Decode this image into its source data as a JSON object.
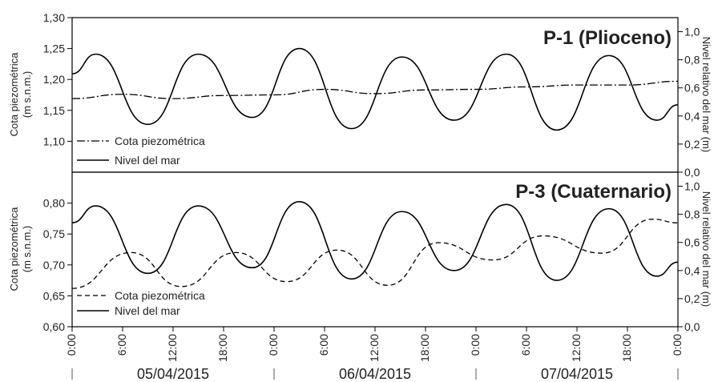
{
  "chart_data": [
    {
      "type": "line",
      "title": "P-1 (Plioceno)",
      "ylabel_left": "Cota piezométrica\n(m s.n.m.)",
      "ylabel_right": "Nivel relativo del mar  (m)",
      "ylim_left": [
        1.05,
        1.3
      ],
      "ylim_right": [
        0.0,
        1.1
      ],
      "yticks_left": [
        "1,30",
        "1,25",
        "1,20",
        "1,15",
        "1,10"
      ],
      "yticks_right": [
        "0,0",
        "0,2",
        "0,4",
        "0,6",
        "0,8",
        "1,0"
      ],
      "legend_position": "bottom-left",
      "series": [
        {
          "name": "Cota piezométrica",
          "axis": "left",
          "style": "dashdot",
          "x": [
            0,
            6,
            12,
            18,
            24,
            30,
            36,
            42,
            48,
            54,
            60,
            66,
            72
          ],
          "values": [
            1.169,
            1.176,
            1.169,
            1.174,
            1.175,
            1.184,
            1.177,
            1.183,
            1.184,
            1.188,
            1.191,
            1.191,
            1.197
          ]
        },
        {
          "name": "Nivel del mar",
          "axis": "right",
          "style": "solid",
          "x": [
            0,
            2.8,
            9,
            15,
            21.4,
            27,
            33.2,
            39.2,
            45.4,
            51.6,
            57.6,
            63.8,
            69.5,
            72
          ],
          "values": [
            0.7,
            0.84,
            0.34,
            0.84,
            0.39,
            0.88,
            0.31,
            0.82,
            0.37,
            0.84,
            0.3,
            0.83,
            0.37,
            0.48
          ]
        }
      ]
    },
    {
      "type": "line",
      "title": "P-3 (Cuaternario)",
      "ylabel_left": "Cota piezométrica\n(m s.n.m.)",
      "ylabel_right": "Nivel relativo del mar  (m)",
      "ylim_left": [
        0.6,
        0.85
      ],
      "ylim_right": [
        0.0,
        1.1
      ],
      "yticks_left": [
        "0,80",
        "0,75",
        "0,70",
        "0,65",
        "0,60"
      ],
      "yticks_right": [
        "0,0",
        "0,2",
        "0,4",
        "0,6",
        "0,8",
        "1,0"
      ],
      "legend_position": "bottom-left",
      "series": [
        {
          "name": "Cota piezométrica",
          "axis": "left",
          "style": "dashed",
          "x": [
            0,
            7,
            13,
            19.5,
            25.5,
            31.5,
            37.5,
            43.5,
            50,
            56,
            63,
            69,
            72
          ],
          "values": [
            0.662,
            0.72,
            0.665,
            0.72,
            0.673,
            0.724,
            0.667,
            0.736,
            0.708,
            0.747,
            0.719,
            0.774,
            0.768
          ]
        },
        {
          "name": "Nivel del mar",
          "axis": "right",
          "style": "solid",
          "x": [
            0,
            2.8,
            9,
            15,
            21.4,
            27,
            33.2,
            39.2,
            45.4,
            51.6,
            57.6,
            63.8,
            69.5,
            72
          ],
          "values": [
            0.74,
            0.86,
            0.38,
            0.86,
            0.42,
            0.89,
            0.34,
            0.82,
            0.4,
            0.87,
            0.33,
            0.84,
            0.36,
            0.46
          ]
        }
      ]
    }
  ],
  "x_axis": {
    "tick_labels": [
      "0:00",
      "6:00",
      "12:00",
      "18:00",
      "0:00",
      "6:00",
      "12:00",
      "18:00",
      "0:00",
      "6:00",
      "12:00",
      "18:00",
      "0:00"
    ],
    "dates": [
      "05/04/2015",
      "06/04/2015",
      "07/04/2015"
    ]
  }
}
